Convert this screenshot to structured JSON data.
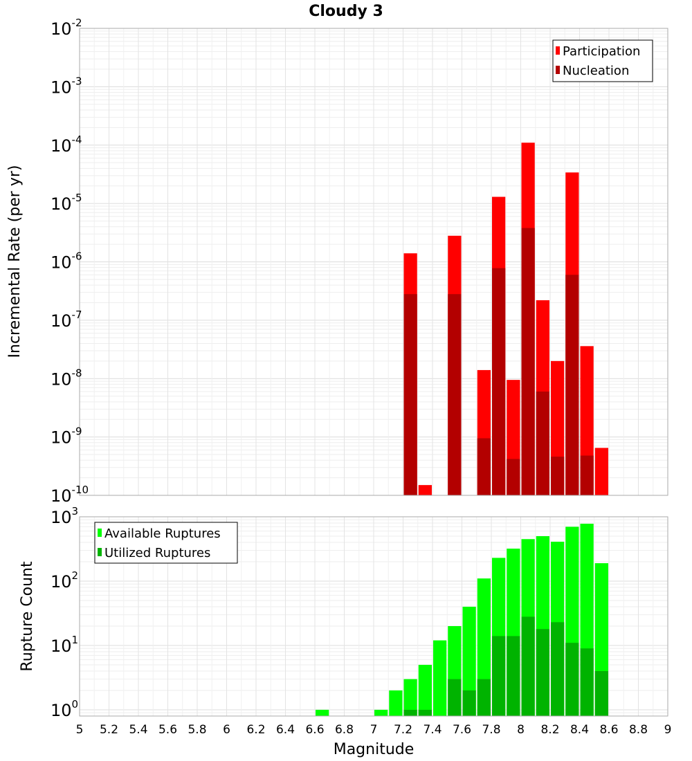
{
  "chart_data": [
    {
      "type": "bar",
      "title": "Cloudy 3",
      "xlabel": "",
      "ylabel": "Incremental Rate (per yr)",
      "yscale": "log",
      "ylim": [
        1e-10,
        0.01
      ],
      "xlim": [
        5,
        9
      ],
      "bar_width": 0.1,
      "grid": true,
      "legend_position": "top-right",
      "y_tick_exponents": [
        "-10",
        "-9",
        "-8",
        "-7",
        "-6",
        "-5",
        "-4",
        "-3",
        "-2"
      ],
      "series": [
        {
          "name": "Participation",
          "color": "#ff0000",
          "x": [
            7.25,
            7.35,
            7.55,
            7.75,
            7.85,
            7.95,
            8.05,
            8.15,
            8.25,
            8.35,
            8.45,
            8.55
          ],
          "values": [
            1.4e-06,
            1.5e-10,
            2.8e-06,
            1.4e-08,
            1.3e-05,
            9.5e-09,
            0.00011,
            2.2e-07,
            2e-08,
            3.4e-05,
            3.6e-08,
            6.5e-10
          ]
        },
        {
          "name": "Nucleation",
          "color": "#b30000",
          "x": [
            7.25,
            7.55,
            7.75,
            7.85,
            7.95,
            8.05,
            8.15,
            8.25,
            8.35,
            8.45
          ],
          "values": [
            2.8e-07,
            2.8e-07,
            9.5e-10,
            7.8e-07,
            4.2e-10,
            3.8e-06,
            6e-09,
            4.6e-10,
            6e-07,
            4.8e-10
          ]
        }
      ]
    },
    {
      "type": "bar",
      "title": "",
      "xlabel": "Magnitude",
      "ylabel": "Rupture Count",
      "yscale": "log",
      "ylim": [
        0.8,
        1000
      ],
      "xlim": [
        5,
        9
      ],
      "bar_width": 0.1,
      "grid": true,
      "legend_position": "top-left",
      "y_tick_exponents": [
        "0",
        "1",
        "2",
        "3"
      ],
      "x_ticks": [
        "5",
        "5.2",
        "5.4",
        "5.6",
        "5.8",
        "6",
        "6.2",
        "6.4",
        "6.6",
        "6.8",
        "7",
        "7.2",
        "7.4",
        "7.6",
        "7.8",
        "8",
        "8.2",
        "8.4",
        "8.6",
        "8.8",
        "9"
      ],
      "series": [
        {
          "name": "Available Ruptures",
          "color": "#00ff00",
          "x": [
            6.65,
            7.05,
            7.15,
            7.25,
            7.35,
            7.45,
            7.55,
            7.65,
            7.75,
            7.85,
            7.95,
            8.05,
            8.15,
            8.25,
            8.35,
            8.45,
            8.55
          ],
          "values": [
            1,
            1,
            2,
            3,
            5,
            12,
            20,
            40,
            110,
            230,
            320,
            450,
            500,
            410,
            700,
            780,
            190
          ]
        },
        {
          "name": "Utilized Ruptures",
          "color": "#00b300",
          "x": [
            7.25,
            7.35,
            7.55,
            7.65,
            7.75,
            7.85,
            7.95,
            8.05,
            8.15,
            8.25,
            8.35,
            8.45,
            8.55
          ],
          "values": [
            1,
            1,
            3,
            2,
            3,
            14,
            14,
            28,
            18,
            23,
            11,
            9,
            4
          ]
        }
      ]
    }
  ]
}
